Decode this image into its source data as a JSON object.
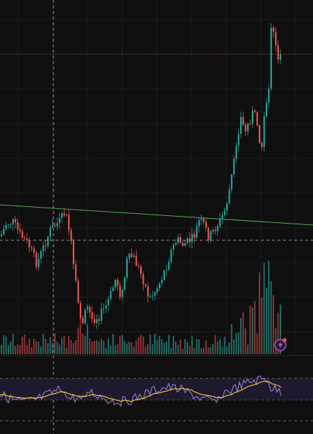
{
  "colors": {
    "background": "#0f0f0f",
    "grid": "#1c1c1c",
    "bull": "#26a69a",
    "bear": "#ef5350",
    "volume_bull": "#1f6f68",
    "volume_bear": "#8e3533",
    "trendline": "#4caf50",
    "rsi_line": "#8e7cc3",
    "rsi_ma": "#f5c242",
    "rsi_band": "#1e1a2e",
    "price_line": "#ef5350",
    "crosshair": "#9a9a9a",
    "badge": "#a060c8",
    "badge_dot": "#ef5350"
  },
  "main_panel": {
    "crosshair_vertical": true,
    "crosshair_horizontal": true,
    "last_price_line": true,
    "trendline": true
  },
  "icons": {
    "flash_badge": "lightning-bolt-icon"
  },
  "rsi_panel": {
    "upper_band": 70,
    "middle_band": 50,
    "lower_band": 30
  }
}
